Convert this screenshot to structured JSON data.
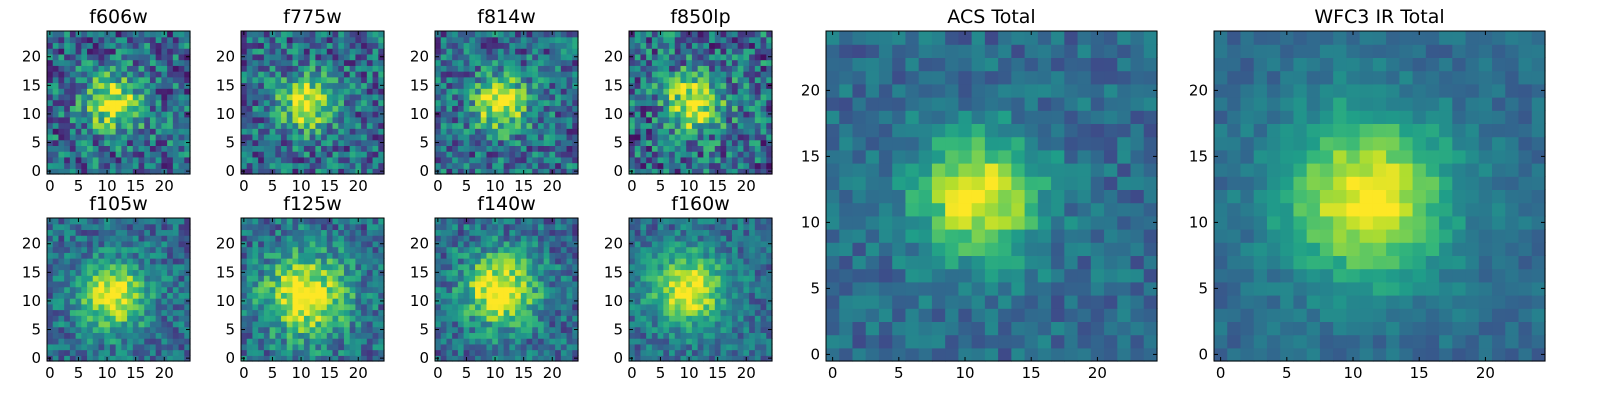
{
  "chart_data": [
    {
      "type": "heatmap",
      "title": "f606w",
      "xticks": [
        "0",
        "5",
        "10",
        "15",
        "20"
      ],
      "yticks": [
        "0",
        "5",
        "10",
        "15",
        "20"
      ],
      "xlim": [
        0,
        24
      ],
      "ylim": [
        0,
        24
      ],
      "grid": false,
      "colormap": "viridis",
      "peak": [
        11,
        12
      ],
      "spread": 3.4,
      "noise": 0.3,
      "seed": 11
    },
    {
      "type": "heatmap",
      "title": "f775w",
      "xticks": [
        "0",
        "5",
        "10",
        "15",
        "20"
      ],
      "yticks": [
        "0",
        "5",
        "10",
        "15",
        "20"
      ],
      "xlim": [
        0,
        24
      ],
      "ylim": [
        0,
        24
      ],
      "grid": false,
      "colormap": "viridis",
      "peak": [
        11,
        12
      ],
      "spread": 3.3,
      "noise": 0.28,
      "seed": 23
    },
    {
      "type": "heatmap",
      "title": "f814w",
      "xticks": [
        "0",
        "5",
        "10",
        "15",
        "20"
      ],
      "yticks": [
        "0",
        "5",
        "10",
        "15",
        "20"
      ],
      "xlim": [
        0,
        24
      ],
      "ylim": [
        0,
        24
      ],
      "grid": false,
      "colormap": "viridis",
      "peak": [
        11,
        12
      ],
      "spread": 3.4,
      "noise": 0.27,
      "seed": 37
    },
    {
      "type": "heatmap",
      "title": "f850lp",
      "xticks": [
        "0",
        "5",
        "10",
        "15",
        "20"
      ],
      "yticks": [
        "0",
        "5",
        "10",
        "15",
        "20"
      ],
      "xlim": [
        0,
        24
      ],
      "ylim": [
        0,
        24
      ],
      "grid": false,
      "colormap": "viridis",
      "peak": [
        11,
        12
      ],
      "spread": 3.5,
      "noise": 0.32,
      "seed": 41
    },
    {
      "type": "heatmap",
      "title": "f105w",
      "xticks": [
        "0",
        "5",
        "10",
        "15",
        "20"
      ],
      "yticks": [
        "0",
        "5",
        "10",
        "15",
        "20"
      ],
      "xlim": [
        0,
        24
      ],
      "ylim": [
        0,
        24
      ],
      "grid": false,
      "colormap": "viridis",
      "peak": [
        11,
        11
      ],
      "spread": 4.2,
      "noise": 0.2,
      "seed": 53
    },
    {
      "type": "heatmap",
      "title": "f125w",
      "xticks": [
        "0",
        "5",
        "10",
        "15",
        "20"
      ],
      "yticks": [
        "0",
        "5",
        "10",
        "15",
        "20"
      ],
      "xlim": [
        0,
        24
      ],
      "ylim": [
        0,
        24
      ],
      "grid": false,
      "colormap": "viridis",
      "peak": [
        11,
        11
      ],
      "spread": 5.2,
      "noise": 0.22,
      "seed": 67
    },
    {
      "type": "heatmap",
      "title": "f140w",
      "xticks": [
        "0",
        "5",
        "10",
        "15",
        "20"
      ],
      "yticks": [
        "0",
        "5",
        "10",
        "15",
        "20"
      ],
      "xlim": [
        0,
        24
      ],
      "ylim": [
        0,
        24
      ],
      "grid": false,
      "colormap": "viridis",
      "peak": [
        11,
        12
      ],
      "spread": 4.6,
      "noise": 0.22,
      "seed": 71
    },
    {
      "type": "heatmap",
      "title": "f160w",
      "xticks": [
        "0",
        "5",
        "10",
        "15",
        "20"
      ],
      "yticks": [
        "0",
        "5",
        "10",
        "15",
        "20"
      ],
      "xlim": [
        0,
        24
      ],
      "ylim": [
        0,
        24
      ],
      "grid": false,
      "colormap": "viridis",
      "peak": [
        10,
        12
      ],
      "spread": 4.5,
      "noise": 0.18,
      "seed": 83
    },
    {
      "type": "heatmap",
      "title": "ACS Total",
      "xticks": [
        "0",
        "5",
        "10",
        "15",
        "20"
      ],
      "yticks": [
        "0",
        "5",
        "10",
        "15",
        "20"
      ],
      "xlim": [
        0,
        24
      ],
      "ylim": [
        0,
        24
      ],
      "grid": false,
      "colormap": "viridis",
      "peak": [
        11,
        12
      ],
      "spread": 3.3,
      "noise": 0.13,
      "seed": 97
    },
    {
      "type": "heatmap",
      "title": "WFC3 IR Total",
      "xticks": [
        "0",
        "5",
        "10",
        "15",
        "20"
      ],
      "yticks": [
        "0",
        "5",
        "10",
        "15",
        "20"
      ],
      "xlim": [
        0,
        24
      ],
      "ylim": [
        0,
        24
      ],
      "grid": false,
      "colormap": "viridis",
      "peak": [
        11,
        12
      ],
      "spread": 4.4,
      "noise": 0.09,
      "seed": 101
    }
  ]
}
